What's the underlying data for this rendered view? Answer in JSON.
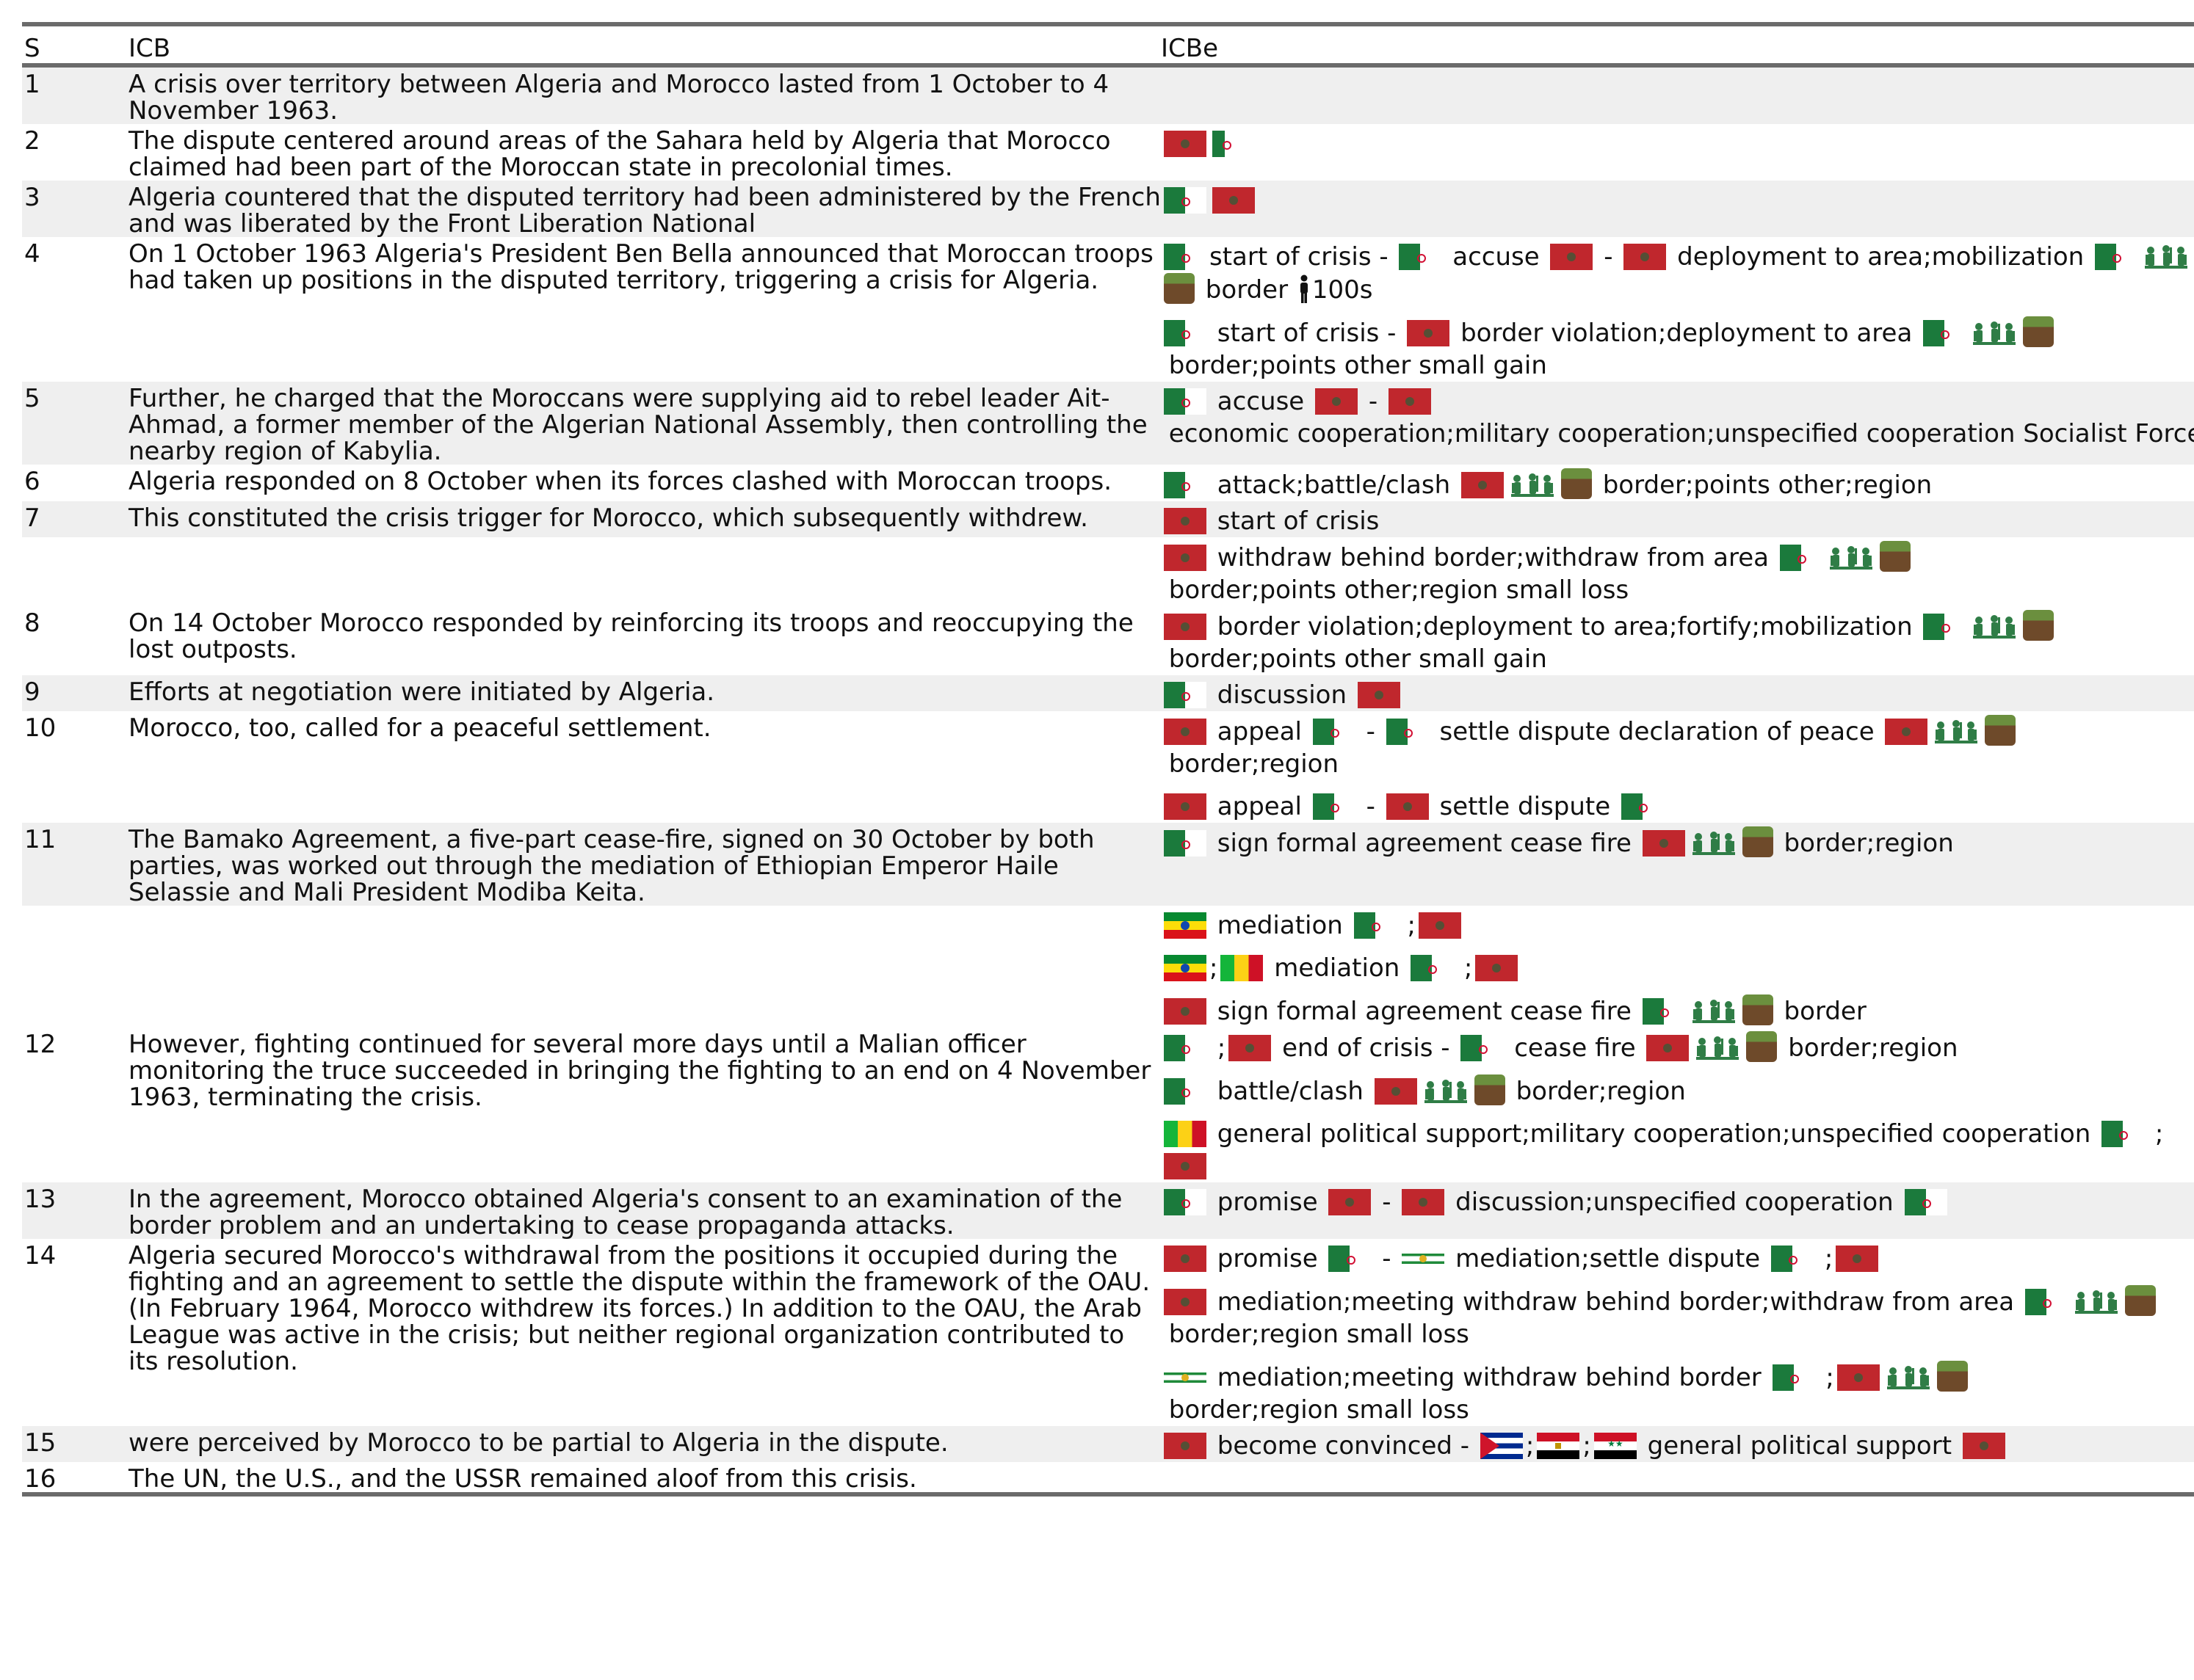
{
  "header": {
    "s": "S",
    "icb": "ICB",
    "icbe": "ICBe"
  },
  "rows": [
    {
      "s": "1",
      "icb": "A crisis over territory between Algeria and Morocco lasted from 1 October to 4 November 1963.",
      "shade": true,
      "events": []
    },
    {
      "s": "2",
      "icb": "The dispute centered around areas of the Sahara held by Algeria that Morocco claimed had been part of the Moroccan state in precolonial times.",
      "shade": false,
      "events": [
        [
          {
            "k": "flag",
            "c": "MA"
          },
          {
            "k": "flag",
            "c": "DZ",
            "sq": true
          }
        ]
      ]
    },
    {
      "s": "3",
      "icb": "Algeria countered that the disputed territory had been administered by the French and was liberated by the Front Liberation National",
      "shade": true,
      "events": [
        [
          {
            "k": "flag",
            "c": "DZ"
          },
          {
            "k": "flag",
            "c": "MA"
          }
        ]
      ]
    },
    {
      "s": "4",
      "icb": "On 1 October 1963 Algeria's President Ben Bella announced that Moroccan troops had taken up positions in the disputed territory, triggering a crisis for Algeria.",
      "shade": false,
      "events": [
        [
          {
            "k": "flag",
            "c": "DZ"
          },
          {
            "k": "text",
            "t": "start of crisis - "
          },
          {
            "k": "flag",
            "c": "DZ"
          },
          {
            "k": "text",
            "t": " accuse "
          },
          {
            "k": "flag",
            "c": "MA"
          },
          {
            "k": "text",
            "t": " - "
          },
          {
            "k": "flag",
            "c": "MA"
          },
          {
            "k": "text",
            "t": " deployment to area;mobilization "
          },
          {
            "k": "flag",
            "c": "DZ"
          },
          {
            "k": "icon",
            "i": "soldier"
          },
          {
            "k": "icon",
            "i": "land"
          },
          {
            "k": "text",
            "t": " border "
          },
          {
            "k": "icon",
            "i": "person"
          },
          {
            "k": "text",
            "t": "100s"
          }
        ],
        [
          {
            "k": "flag",
            "c": "DZ"
          },
          {
            "k": "text",
            "t": " start of crisis - "
          },
          {
            "k": "flag",
            "c": "MA"
          },
          {
            "k": "text",
            "t": " border violation;deployment to area "
          },
          {
            "k": "flag",
            "c": "DZ"
          },
          {
            "k": "icon",
            "i": "soldier"
          },
          {
            "k": "icon",
            "i": "land"
          },
          {
            "k": "text",
            "t": " border;points other small gain"
          }
        ]
      ]
    },
    {
      "s": "5",
      "icb": "Further, he charged that the Moroccans were supplying aid to rebel leader Ait-Ahmad, a former member of the Algerian National Assembly, then controlling the nearby region of Kabylia.",
      "shade": true,
      "events": [
        [
          {
            "k": "flag",
            "c": "DZ"
          },
          {
            "k": "text",
            "t": " accuse "
          },
          {
            "k": "flag",
            "c": "MA"
          },
          {
            "k": "text",
            "t": " - "
          },
          {
            "k": "flag",
            "c": "MA"
          },
          {
            "k": "text",
            "t": " economic cooperation;military cooperation;unspecified cooperation Socialist Forces Front"
          }
        ]
      ]
    },
    {
      "s": "6",
      "icb": "Algeria responded on 8 October when its forces clashed with Moroccan troops.",
      "shade": false,
      "events": [
        [
          {
            "k": "flag",
            "c": "DZ"
          },
          {
            "k": "text",
            "t": " attack;battle/clash "
          },
          {
            "k": "flag",
            "c": "MA"
          },
          {
            "k": "icon",
            "i": "soldier"
          },
          {
            "k": "icon",
            "i": "land"
          },
          {
            "k": "text",
            "t": " border;points other;region"
          }
        ]
      ]
    },
    {
      "s": "7",
      "icb": "This constituted the crisis trigger for Morocco, which subsequently withdrew.",
      "shade": true,
      "events": [
        [
          {
            "k": "flag",
            "c": "MA"
          },
          {
            "k": "text",
            "t": " start of crisis"
          }
        ]
      ]
    },
    {
      "s": "",
      "icb": "",
      "shade": false,
      "events": [
        [
          {
            "k": "flag",
            "c": "MA"
          },
          {
            "k": "text",
            "t": " withdraw behind border;withdraw from area "
          },
          {
            "k": "flag",
            "c": "DZ"
          },
          {
            "k": "icon",
            "i": "soldier"
          },
          {
            "k": "icon",
            "i": "land"
          },
          {
            "k": "text",
            "t": " border;points other;region small loss"
          }
        ]
      ]
    },
    {
      "s": "8",
      "icb": "On 14 October Morocco responded by reinforcing its troops and reoccupying the lost outposts.",
      "shade": false,
      "events": [
        [
          {
            "k": "flag",
            "c": "MA"
          },
          {
            "k": "text",
            "t": " border violation;deployment to area;fortify;mobilization "
          },
          {
            "k": "flag",
            "c": "DZ"
          },
          {
            "k": "icon",
            "i": "soldier"
          },
          {
            "k": "icon",
            "i": "land"
          },
          {
            "k": "text",
            "t": " border;points other small gain"
          }
        ]
      ]
    },
    {
      "s": "9",
      "icb": "Efforts at negotiation were initiated by Algeria.",
      "shade": true,
      "events": [
        [
          {
            "k": "flag",
            "c": "DZ"
          },
          {
            "k": "text",
            "t": " discussion "
          },
          {
            "k": "flag",
            "c": "MA"
          }
        ]
      ]
    },
    {
      "s": "10",
      "icb": "Morocco, too, called for a peaceful settlement.",
      "shade": false,
      "events": [
        [
          {
            "k": "flag",
            "c": "MA"
          },
          {
            "k": "text",
            "t": " appeal "
          },
          {
            "k": "flag",
            "c": "DZ"
          },
          {
            "k": "text",
            "t": " - "
          },
          {
            "k": "flag",
            "c": "DZ"
          },
          {
            "k": "text",
            "t": " settle dispute declaration of peace "
          },
          {
            "k": "flag",
            "c": "MA"
          },
          {
            "k": "icon",
            "i": "soldier"
          },
          {
            "k": "icon",
            "i": "land"
          },
          {
            "k": "text",
            "t": " border;region"
          }
        ],
        [
          {
            "k": "flag",
            "c": "MA"
          },
          {
            "k": "text",
            "t": " appeal "
          },
          {
            "k": "flag",
            "c": "DZ"
          },
          {
            "k": "text",
            "t": " - "
          },
          {
            "k": "flag",
            "c": "MA"
          },
          {
            "k": "text",
            "t": " settle dispute "
          },
          {
            "k": "flag",
            "c": "DZ"
          }
        ]
      ]
    },
    {
      "s": "11",
      "icb": "The Bamako Agreement, a five-part cease-fire, signed on 30 October by both parties, was worked out through the mediation of Ethiopian Emperor Haile Selassie and Mali President Modiba Keita.",
      "shade": true,
      "events": [
        [
          {
            "k": "flag",
            "c": "DZ"
          },
          {
            "k": "text",
            "t": " sign formal agreement cease fire "
          },
          {
            "k": "flag",
            "c": "MA"
          },
          {
            "k": "icon",
            "i": "soldier"
          },
          {
            "k": "icon",
            "i": "land"
          },
          {
            "k": "text",
            "t": " border;region"
          }
        ]
      ]
    },
    {
      "s": "",
      "icb": "",
      "shade": false,
      "events": [
        [
          {
            "k": "flag",
            "c": "ET"
          },
          {
            "k": "text",
            "t": " mediation "
          },
          {
            "k": "flag",
            "c": "DZ"
          },
          {
            "k": "text",
            "t": " ;"
          },
          {
            "k": "flag",
            "c": "MA"
          }
        ],
        [
          {
            "k": "flag",
            "c": "ET"
          },
          {
            "k": "text",
            "t": ";"
          },
          {
            "k": "flag",
            "c": "ML"
          },
          {
            "k": "text",
            "t": " mediation "
          },
          {
            "k": "flag",
            "c": "DZ"
          },
          {
            "k": "text",
            "t": " ;"
          },
          {
            "k": "flag",
            "c": "MA"
          }
        ],
        [
          {
            "k": "flag",
            "c": "MA"
          },
          {
            "k": "text",
            "t": " sign formal agreement cease fire "
          },
          {
            "k": "flag",
            "c": "DZ"
          },
          {
            "k": "icon",
            "i": "soldier"
          },
          {
            "k": "icon",
            "i": "land"
          },
          {
            "k": "text",
            "t": " border"
          }
        ]
      ]
    },
    {
      "s": "12",
      "icb": "However, fighting continued for several more days until a Malian officer monitoring the truce succeeded in bringing the fighting to an end on 4 November 1963, terminating the crisis.",
      "shade": false,
      "events": [
        [
          {
            "k": "flag",
            "c": "DZ"
          },
          {
            "k": "text",
            "t": " ;"
          },
          {
            "k": "flag",
            "c": "MA"
          },
          {
            "k": "text",
            "t": " end of crisis - "
          },
          {
            "k": "flag",
            "c": "DZ"
          },
          {
            "k": "text",
            "t": " cease fire "
          },
          {
            "k": "flag",
            "c": "MA"
          },
          {
            "k": "icon",
            "i": "soldier"
          },
          {
            "k": "icon",
            "i": "land"
          },
          {
            "k": "text",
            "t": " border;region"
          }
        ],
        [
          {
            "k": "flag",
            "c": "DZ"
          },
          {
            "k": "text",
            "t": " battle/clash "
          },
          {
            "k": "flag",
            "c": "MA"
          },
          {
            "k": "icon",
            "i": "soldier"
          },
          {
            "k": "icon",
            "i": "land"
          },
          {
            "k": "text",
            "t": " border;region"
          }
        ],
        [
          {
            "k": "flag",
            "c": "ML"
          },
          {
            "k": "text",
            "t": " general political support;military cooperation;unspecified cooperation "
          },
          {
            "k": "flag",
            "c": "DZ"
          },
          {
            "k": "text",
            "t": " ;"
          },
          {
            "k": "flag",
            "c": "MA"
          }
        ]
      ]
    },
    {
      "s": "13",
      "icb": "In the agreement, Morocco obtained Algeria's consent to an examination of the border problem and an undertaking to cease propaganda attacks.",
      "shade": true,
      "events": [
        [
          {
            "k": "flag",
            "c": "DZ"
          },
          {
            "k": "text",
            "t": " promise "
          },
          {
            "k": "flag",
            "c": "MA"
          },
          {
            "k": "text",
            "t": " - "
          },
          {
            "k": "flag",
            "c": "MA"
          },
          {
            "k": "text",
            "t": " discussion;unspecified cooperation "
          },
          {
            "k": "flag",
            "c": "DZ"
          }
        ]
      ]
    },
    {
      "s": "14",
      "icb": "Algeria secured Morocco's withdrawal from the positions it occupied during the fighting and an agreement to settle the dispute within the framework of the OAU. (In February 1964, Morocco withdrew its forces.) In addition to the OAU, the Arab League was active in the crisis; but neither regional organization contributed to its resolution.",
      "shade": false,
      "events": [
        [
          {
            "k": "flag",
            "c": "MA"
          },
          {
            "k": "text",
            "t": " promise "
          },
          {
            "k": "flag",
            "c": "DZ"
          },
          {
            "k": "text",
            "t": " - "
          },
          {
            "k": "flag",
            "c": "AL"
          },
          {
            "k": "text",
            "t": " mediation;settle dispute "
          },
          {
            "k": "flag",
            "c": "DZ"
          },
          {
            "k": "text",
            "t": " ;"
          },
          {
            "k": "flag",
            "c": "MA"
          }
        ],
        [
          {
            "k": "flag",
            "c": "MA"
          },
          {
            "k": "text",
            "t": " mediation;meeting withdraw behind border;withdraw from area "
          },
          {
            "k": "flag",
            "c": "DZ"
          },
          {
            "k": "icon",
            "i": "soldier"
          },
          {
            "k": "icon",
            "i": "land"
          },
          {
            "k": "text",
            "t": " border;region small loss"
          }
        ],
        [
          {
            "k": "flag",
            "c": "AL"
          },
          {
            "k": "text",
            "t": " mediation;meeting withdraw behind border "
          },
          {
            "k": "flag",
            "c": "DZ"
          },
          {
            "k": "text",
            "t": " ;"
          },
          {
            "k": "flag",
            "c": "MA"
          },
          {
            "k": "icon",
            "i": "soldier"
          },
          {
            "k": "icon",
            "i": "land"
          },
          {
            "k": "text",
            "t": " border;region small loss"
          }
        ]
      ]
    },
    {
      "s": "15",
      "icb": "were perceived by Morocco to be partial to Algeria in the dispute.",
      "shade": true,
      "events": [
        [
          {
            "k": "flag",
            "c": "MA"
          },
          {
            "k": "text",
            "t": " become convinced - "
          },
          {
            "k": "flag",
            "c": "CU"
          },
          {
            "k": "text",
            "t": ";"
          },
          {
            "k": "flag",
            "c": "EG"
          },
          {
            "k": "text",
            "t": ";"
          },
          {
            "k": "flag",
            "c": "SY"
          },
          {
            "k": "text",
            "t": " general political support "
          },
          {
            "k": "flag",
            "c": "MA"
          }
        ]
      ]
    },
    {
      "s": "16",
      "icb": "The UN, the U.S., and the USSR remained aloof from this crisis.",
      "shade": false,
      "events": []
    }
  ],
  "flag_names": {
    "MA": "morocco-flag-icon",
    "DZ": "algeria-flag-icon",
    "ET": "ethiopia-flag-icon",
    "ML": "mali-flag-icon",
    "AL": "arab-league-flag-icon",
    "CU": "cuba-flag-icon",
    "EG": "egypt-flag-icon",
    "SY": "syria-flag-icon"
  },
  "icon_names": {
    "soldier": "soldiers-icon",
    "land": "territory-land-icon",
    "person": "person-icon"
  },
  "colors": {
    "rule": "#6b6b6b",
    "shade": "#efefef",
    "morocco_red": "#c0272d",
    "algeria_green": "#1b7a3c"
  }
}
